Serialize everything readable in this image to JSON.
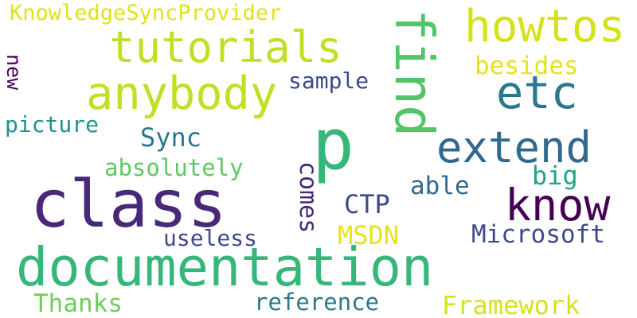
{
  "words": [
    {
      "text": "KnowledgeSyncProvider",
      "color": "#dfe318"
    },
    {
      "text": "tutorials",
      "color": "#c2df23"
    },
    {
      "text": "howtos",
      "color": "#d5e21a"
    },
    {
      "text": "find",
      "color": "#52c569"
    },
    {
      "text": "anybody",
      "color": "#c2df23"
    },
    {
      "text": "etc",
      "color": "#2a788e"
    },
    {
      "text": "besides",
      "color": "#e5e419"
    },
    {
      "text": "new",
      "color": "#440154"
    },
    {
      "text": "sample",
      "color": "#3e4989"
    },
    {
      "text": "picture",
      "color": "#21918c"
    },
    {
      "text": "p",
      "color": "#35b779"
    },
    {
      "text": "Sync",
      "color": "#2a788e"
    },
    {
      "text": "extend",
      "color": "#31688e"
    },
    {
      "text": "absolutely",
      "color": "#5ec962"
    },
    {
      "text": "big",
      "color": "#20a486"
    },
    {
      "text": "class",
      "color": "#482878"
    },
    {
      "text": "comes",
      "color": "#482878"
    },
    {
      "text": "able",
      "color": "#31688e"
    },
    {
      "text": "know",
      "color": "#440154"
    },
    {
      "text": "CTP",
      "color": "#3e4989"
    },
    {
      "text": "useless",
      "color": "#3e4989"
    },
    {
      "text": "MSDN",
      "color": "#e5e419"
    },
    {
      "text": "Microsoft",
      "color": "#3e4989"
    },
    {
      "text": "documentation",
      "color": "#35b779"
    },
    {
      "text": "Thanks",
      "color": "#6ece58"
    },
    {
      "text": "reference",
      "color": "#2a788e"
    },
    {
      "text": "Framework",
      "color": "#d5e21a"
    }
  ]
}
